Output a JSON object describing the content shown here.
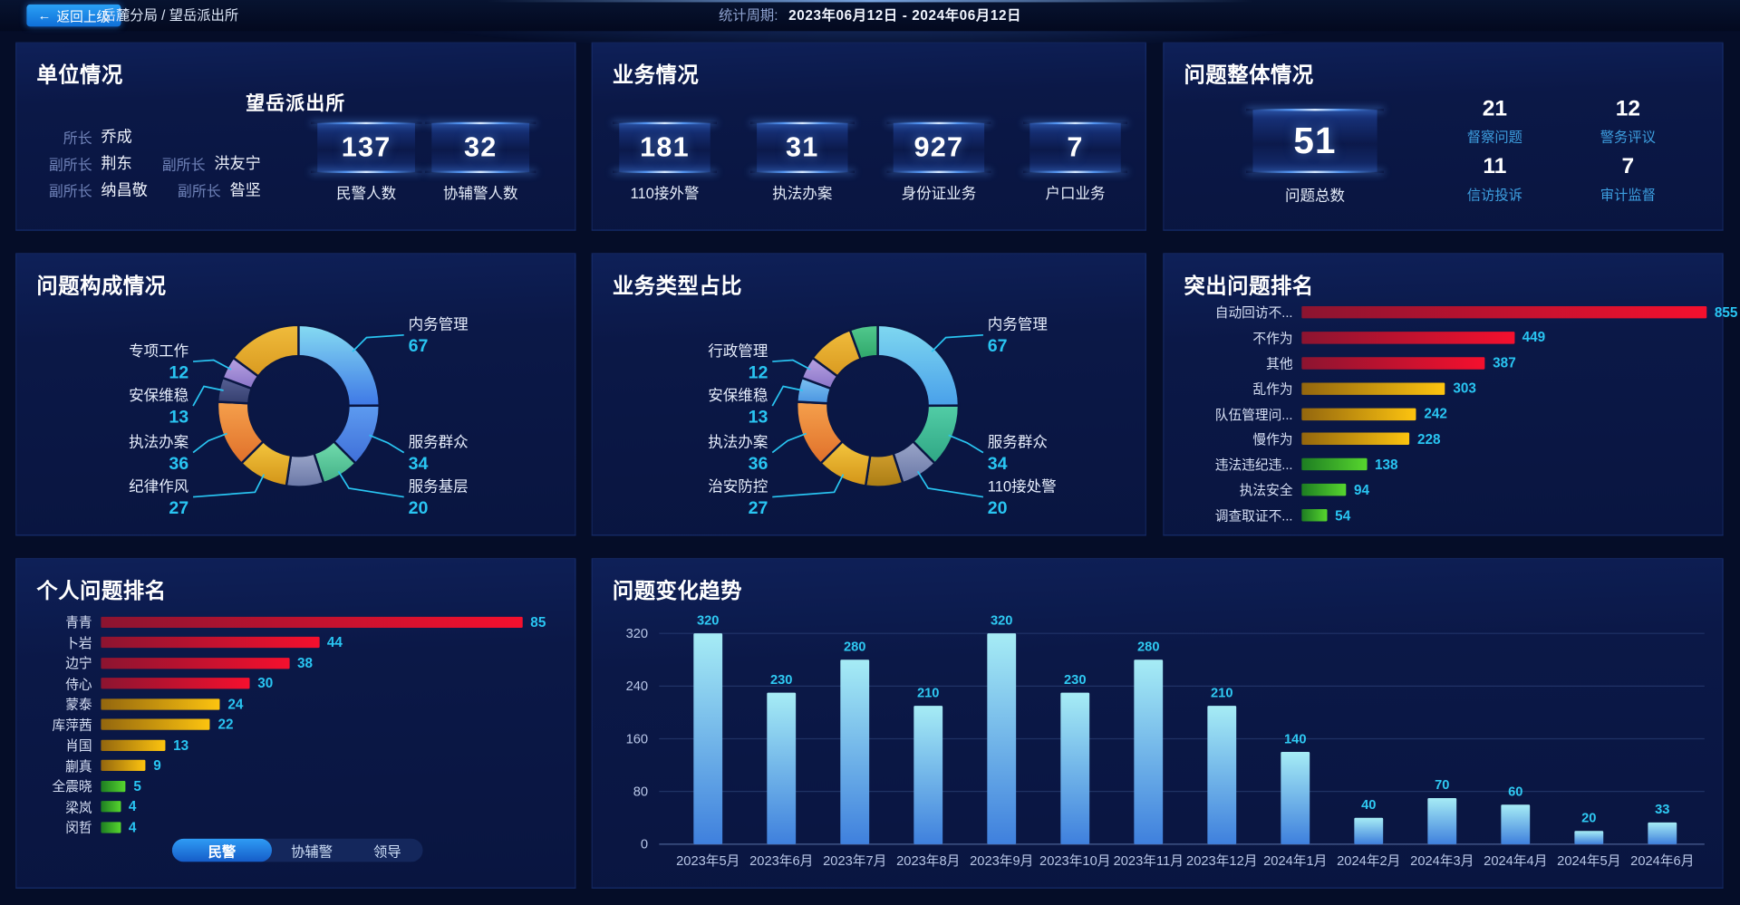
{
  "topbar": {
    "back_label": "返回上级",
    "breadcrumb": "岳麓分局 / 望岳派出所",
    "period_label": "统计周期:",
    "period_value": "2023年06月12日 - 2024年06月12日"
  },
  "unit_panel": {
    "title": "单位情况",
    "station": "望岳派出所",
    "leader_rows": [
      [
        {
          "role": "所长",
          "name": "乔成"
        }
      ],
      [
        {
          "role": "副所长",
          "name": "荆东"
        },
        {
          "role": "副所长",
          "name": "洪友宁"
        }
      ],
      [
        {
          "role": "副所长",
          "name": "纳昌敬"
        },
        {
          "role": "副所长",
          "name": "昝坚"
        }
      ]
    ],
    "stats": [
      {
        "value": "137",
        "label": "民警人数"
      },
      {
        "value": "32",
        "label": "协辅警人数"
      }
    ]
  },
  "business_panel": {
    "title": "业务情况",
    "stats": [
      {
        "value": "181",
        "label": "110接外警"
      },
      {
        "value": "31",
        "label": "执法办案"
      },
      {
        "value": "927",
        "label": "身份证业务"
      },
      {
        "value": "7",
        "label": "户口业务"
      }
    ]
  },
  "problem_panel": {
    "title": "问题整体情况",
    "total": {
      "value": "51",
      "label": "问题总数"
    },
    "stats": [
      {
        "value": "21",
        "label": "督察问题"
      },
      {
        "value": "12",
        "label": "警务评议"
      },
      {
        "value": "11",
        "label": "信访投诉"
      },
      {
        "value": "7",
        "label": "审计监督"
      }
    ]
  },
  "personal_tabs": [
    {
      "label": "民警",
      "active": true
    },
    {
      "label": "协辅警",
      "active": false
    },
    {
      "label": "领导",
      "active": false
    }
  ],
  "accent_colors": {
    "cyan_value": "#29c5f2",
    "axis_text": "#b9c7e8",
    "stat_sub_label": "#3d9fe0"
  },
  "chart_data": [
    {
      "type": "pie",
      "title": "问题构成情况",
      "legend_position": "callout-labels",
      "segments": [
        {
          "label": "内务管理",
          "value": 67,
          "colors": [
            "#86dcf2",
            "#3e78e6"
          ]
        },
        {
          "label": "服务群众",
          "value": 34,
          "colors": [
            "#5d9bf0",
            "#3f6fd8"
          ]
        },
        {
          "label": "服务基层",
          "value": 20,
          "colors": [
            "#71dcae",
            "#43b086"
          ]
        },
        {
          "label": "",
          "value": 20,
          "colors": [
            "#9aa5c9",
            "#6a77a6"
          ],
          "estimated": true
        },
        {
          "label": "纪律作风",
          "value": 27,
          "colors": [
            "#f4c63e",
            "#d29418"
          ]
        },
        {
          "label": "执法办案",
          "value": 36,
          "colors": [
            "#f5a04c",
            "#e0702a"
          ]
        },
        {
          "label": "安保维稳",
          "value": 13,
          "colors": [
            "#566094",
            "#343e6e"
          ]
        },
        {
          "label": "专项工作",
          "value": 12,
          "colors": [
            "#b7a2e2",
            "#8a74c8"
          ]
        },
        {
          "label": "",
          "value": 40,
          "colors": [
            "#f0bc3c",
            "#d99a20"
          ],
          "estimated": true
        }
      ]
    },
    {
      "type": "pie",
      "title": "业务类型占比",
      "legend_position": "callout-labels",
      "segments": [
        {
          "label": "内务管理",
          "value": 67,
          "colors": [
            "#7fd8f0",
            "#49a0ea"
          ]
        },
        {
          "label": "服务群众",
          "value": 34,
          "colors": [
            "#52cda6",
            "#2fa684"
          ]
        },
        {
          "label": "110接处警",
          "value": 20,
          "colors": [
            "#9aa5c9",
            "#6a77a6"
          ]
        },
        {
          "label": "",
          "value": 20,
          "colors": [
            "#cf9d2c",
            "#aa7c14"
          ],
          "estimated": true
        },
        {
          "label": "治安防控",
          "value": 27,
          "colors": [
            "#f4c63e",
            "#d29418"
          ]
        },
        {
          "label": "执法办案",
          "value": 36,
          "colors": [
            "#f5a04c",
            "#e0702a"
          ]
        },
        {
          "label": "安保维稳",
          "value": 13,
          "colors": [
            "#7cc2f2",
            "#4a94e0"
          ]
        },
        {
          "label": "行政管理",
          "value": 12,
          "colors": [
            "#b7a2e2",
            "#8a74c8"
          ]
        },
        {
          "label": "",
          "value": 25,
          "colors": [
            "#f0bc3c",
            "#d99a20"
          ],
          "estimated": true
        },
        {
          "label": "",
          "value": 15,
          "colors": [
            "#52c98e",
            "#2fa76a"
          ],
          "estimated": true
        }
      ]
    },
    {
      "type": "bar",
      "orientation": "horizontal",
      "title": "突出问题排名",
      "categories": [
        "自动回访不...",
        "不作为",
        "其他",
        "乱作为",
        "队伍管理问...",
        "慢作为",
        "违法违纪违...",
        "执法安全",
        "调查取证不..."
      ],
      "values": [
        855,
        449,
        387,
        303,
        242,
        228,
        138,
        94,
        54
      ],
      "bar_colors": [
        [
          "#8c1430",
          "#f5102e"
        ],
        [
          "#8c1430",
          "#f5102e"
        ],
        [
          "#8c1430",
          "#f5102e"
        ],
        [
          "#93660e",
          "#fdc40f"
        ],
        [
          "#93660e",
          "#fdc40f"
        ],
        [
          "#93660e",
          "#fdc40f"
        ],
        [
          "#1d7d22",
          "#57d62e"
        ],
        [
          "#1d7d22",
          "#57d62e"
        ],
        [
          "#1d7d22",
          "#57d62e"
        ]
      ],
      "value_color": "#29c5f2"
    },
    {
      "type": "bar",
      "orientation": "horizontal",
      "title": "个人问题排名",
      "categories": [
        "青青",
        "卜岩",
        "边宁",
        "侍心",
        "蒙泰",
        "库萍茜",
        "肖国",
        "蒯真",
        "全震晓",
        "梁岚",
        "闵哲"
      ],
      "values": [
        85,
        44,
        38,
        30,
        24,
        22,
        13,
        9,
        5,
        4,
        4
      ],
      "bar_colors": [
        [
          "#8c1430",
          "#f5102e"
        ],
        [
          "#8c1430",
          "#f5102e"
        ],
        [
          "#8c1430",
          "#f5102e"
        ],
        [
          "#8c1430",
          "#f5102e"
        ],
        [
          "#93660e",
          "#fdc40f"
        ],
        [
          "#93660e",
          "#fdc40f"
        ],
        [
          "#93660e",
          "#fdc40f"
        ],
        [
          "#93660e",
          "#fdc40f"
        ],
        [
          "#1d7d22",
          "#57d62e"
        ],
        [
          "#1d7d22",
          "#57d62e"
        ],
        [
          "#1d7d22",
          "#57d62e"
        ]
      ],
      "value_color": "#29c5f2"
    },
    {
      "type": "bar",
      "orientation": "vertical",
      "title": "问题变化趋势",
      "categories": [
        "2023年5月",
        "2023年6月",
        "2023年7月",
        "2023年8月",
        "2023年9月",
        "2023年10月",
        "2023年11月",
        "2023年12月",
        "2024年1月",
        "2024年2月",
        "2024年3月",
        "2024年4月",
        "2024年5月",
        "2024年6月"
      ],
      "values": [
        320,
        230,
        280,
        210,
        320,
        230,
        280,
        210,
        140,
        40,
        70,
        60,
        20,
        33
      ],
      "yticks": [
        0,
        80,
        160,
        240,
        320
      ],
      "ylim": [
        0,
        320
      ],
      "grid": true,
      "bar_gradient": [
        "#a6ecf5",
        "#3f80dd"
      ],
      "value_color": "#2fc9f2"
    }
  ]
}
